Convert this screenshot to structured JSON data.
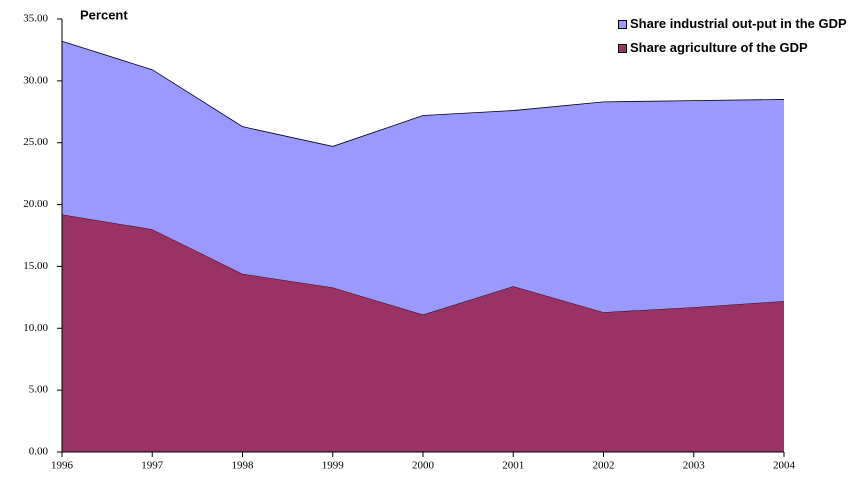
{
  "chart_data": {
    "type": "stacked-area",
    "y_label": "Percent",
    "categories": [
      "1996",
      "1997",
      "1998",
      "1999",
      "2000",
      "2001",
      "2002",
      "2003",
      "2004"
    ],
    "series": [
      {
        "name": "Share agriculture of the GDP",
        "color": "#993366",
        "values": [
          19.2,
          18.0,
          14.4,
          13.3,
          11.1,
          13.4,
          11.3,
          11.7,
          12.2
        ]
      },
      {
        "name": "Share industrial out-put in the GDP",
        "color": "#9999ff",
        "values": [
          14.0,
          12.9,
          11.9,
          11.4,
          16.1,
          14.2,
          17.0,
          16.7,
          16.3
        ]
      }
    ],
    "ylim": [
      0,
      35
    ],
    "yticks": [
      {
        "value": 0,
        "label": "0.00"
      },
      {
        "value": 5,
        "label": "5.00"
      },
      {
        "value": 10,
        "label": "10.00"
      },
      {
        "value": 15,
        "label": "15.00"
      },
      {
        "value": 20,
        "label": "20.00"
      },
      {
        "value": 25,
        "label": "25.00"
      },
      {
        "value": 30,
        "label": "30.00"
      },
      {
        "value": 35,
        "label": "35.00"
      }
    ],
    "legend": "top-right"
  }
}
